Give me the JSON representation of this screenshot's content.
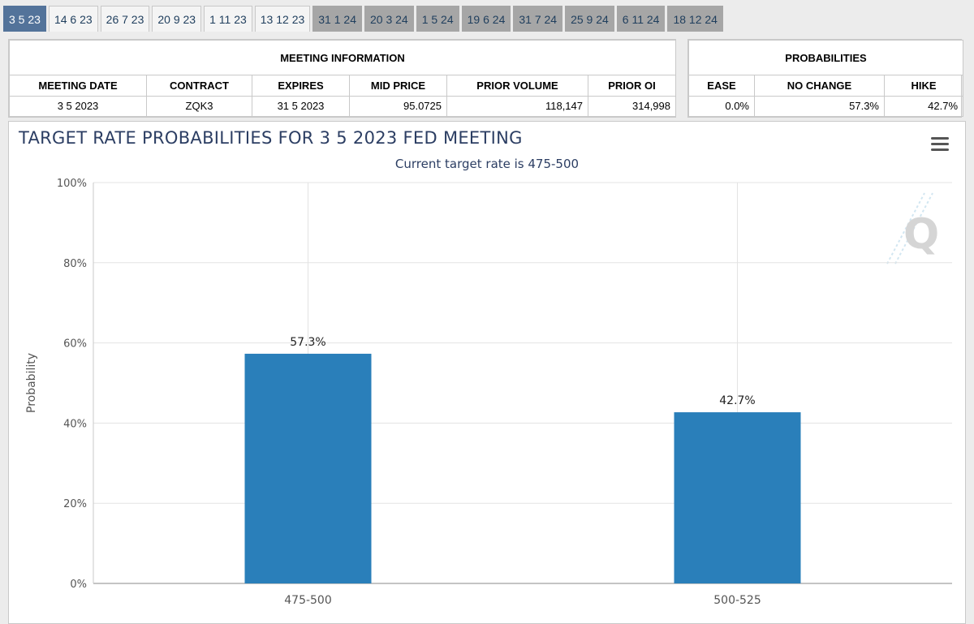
{
  "tabs": [
    {
      "label": "3 5 23",
      "state": "active"
    },
    {
      "label": "14 6 23",
      "state": "normal"
    },
    {
      "label": "26 7 23",
      "state": "normal"
    },
    {
      "label": "20 9 23",
      "state": "normal"
    },
    {
      "label": "1 11 23",
      "state": "normal"
    },
    {
      "label": "13 12 23",
      "state": "normal"
    },
    {
      "label": "31 1 24",
      "state": "disabled"
    },
    {
      "label": "20 3 24",
      "state": "disabled"
    },
    {
      "label": "1 5 24",
      "state": "disabled"
    },
    {
      "label": "19 6 24",
      "state": "disabled"
    },
    {
      "label": "31 7 24",
      "state": "disabled"
    },
    {
      "label": "25 9 24",
      "state": "disabled"
    },
    {
      "label": "6 11 24",
      "state": "disabled"
    },
    {
      "label": "18 12 24",
      "state": "disabled"
    }
  ],
  "meeting_info": {
    "title": "MEETING INFORMATION",
    "headers": {
      "meeting_date": "MEETING DATE",
      "contract": "CONTRACT",
      "expires": "EXPIRES",
      "mid_price": "MID PRICE",
      "prior_volume": "PRIOR VOLUME",
      "prior_oi": "PRIOR OI"
    },
    "values": {
      "meeting_date": "3 5 2023",
      "contract": "ZQK3",
      "expires": "31 5 2023",
      "mid_price": "95.0725",
      "prior_volume": "118,147",
      "prior_oi": "314,998"
    }
  },
  "probabilities": {
    "title": "PROBABILITIES",
    "headers": {
      "ease": "EASE",
      "no_change": "NO CHANGE",
      "hike": "HIKE"
    },
    "values": {
      "ease": "0.0%",
      "no_change": "57.3%",
      "hike": "42.7%"
    }
  },
  "chart_data": {
    "type": "bar",
    "title": "TARGET RATE PROBABILITIES FOR 3 5 2023 FED MEETING",
    "subtitle": "Current target rate is 475-500",
    "xlabel": "",
    "ylabel": "Probability",
    "categories": [
      "475-500",
      "500-525"
    ],
    "values": [
      57.3,
      42.7
    ],
    "data_labels": [
      "57.3%",
      "42.7%"
    ],
    "ylim": [
      0,
      100
    ],
    "yticks": [
      0,
      20,
      40,
      60,
      80,
      100
    ],
    "ytick_labels": [
      "0%",
      "20%",
      "40%",
      "60%",
      "80%",
      "100%"
    ],
    "grid": true,
    "bar_color": "#2a7fba",
    "legend": "none"
  },
  "colors": {
    "tab_active": "#53739a",
    "tab_disabled": "#a6a6a6",
    "title_text": "#2c3e63"
  },
  "icons": {
    "menu": "hamburger-menu-icon",
    "watermark": "q-logo-watermark"
  }
}
